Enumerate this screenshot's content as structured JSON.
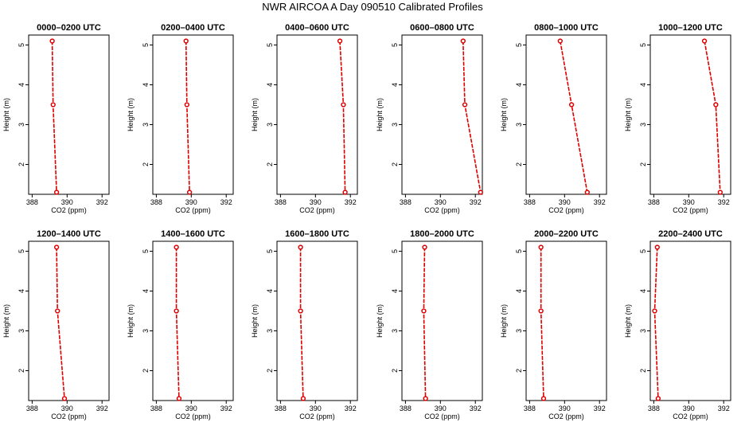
{
  "title": "NWR AIRCOA A  Day 090510  Calibrated Profiles",
  "colors": {
    "series": "#e00000",
    "axis": "#000000"
  },
  "chart_data": [
    {
      "type": "line",
      "title": "0000–0200 UTC",
      "xlabel": "CO2 (ppm)",
      "ylabel": "Height (m)",
      "xlim": [
        387.8,
        392.4
      ],
      "ylim": [
        1.25,
        5.25
      ],
      "xticks": [
        388,
        390,
        392
      ],
      "yticks": [
        2,
        3,
        4,
        5
      ],
      "x": [
        389.15,
        389.2,
        389.4
      ],
      "y": [
        5.1,
        3.5,
        1.3
      ]
    },
    {
      "type": "line",
      "title": "0200–0400 UTC",
      "xlabel": "CO2 (ppm)",
      "ylabel": "Height (m)",
      "xlim": [
        387.8,
        392.4
      ],
      "ylim": [
        1.25,
        5.25
      ],
      "xticks": [
        388,
        390,
        392
      ],
      "yticks": [
        2,
        3,
        4,
        5
      ],
      "x": [
        389.7,
        389.75,
        389.9
      ],
      "y": [
        5.1,
        3.5,
        1.3
      ]
    },
    {
      "type": "line",
      "title": "0400–0600 UTC",
      "xlabel": "CO2 (ppm)",
      "ylabel": "Height (m)",
      "xlim": [
        387.8,
        392.4
      ],
      "ylim": [
        1.25,
        5.25
      ],
      "xticks": [
        388,
        390,
        392
      ],
      "yticks": [
        2,
        3,
        4,
        5
      ],
      "x": [
        391.4,
        391.6,
        391.7
      ],
      "y": [
        5.1,
        3.5,
        1.3
      ]
    },
    {
      "type": "line",
      "title": "0600–0800 UTC",
      "xlabel": "CO2 (ppm)",
      "ylabel": "Height (m)",
      "xlim": [
        387.8,
        392.4
      ],
      "ylim": [
        1.25,
        5.25
      ],
      "xticks": [
        388,
        390,
        392
      ],
      "yticks": [
        2,
        3,
        4,
        5
      ],
      "x": [
        391.3,
        391.4,
        392.3
      ],
      "y": [
        5.1,
        3.5,
        1.3
      ]
    },
    {
      "type": "line",
      "title": "0800–1000 UTC",
      "xlabel": "CO2 (ppm)",
      "ylabel": "Height (m)",
      "xlim": [
        387.8,
        392.4
      ],
      "ylim": [
        1.25,
        5.25
      ],
      "xticks": [
        388,
        390,
        392
      ],
      "yticks": [
        2,
        3,
        4,
        5
      ],
      "x": [
        389.75,
        390.4,
        391.3
      ],
      "y": [
        5.1,
        3.5,
        1.3
      ]
    },
    {
      "type": "line",
      "title": "1000–1200 UTC",
      "xlabel": "CO2 (ppm)",
      "ylabel": "Height (m)",
      "xlim": [
        387.8,
        392.4
      ],
      "ylim": [
        1.25,
        5.25
      ],
      "xticks": [
        388,
        390,
        392
      ],
      "yticks": [
        2,
        3,
        4,
        5
      ],
      "x": [
        390.9,
        391.55,
        391.8
      ],
      "y": [
        5.1,
        3.5,
        1.3
      ]
    },
    {
      "type": "line",
      "title": "1200–1400 UTC",
      "xlabel": "CO2 (ppm)",
      "ylabel": "Height (m)",
      "xlim": [
        387.8,
        392.4
      ],
      "ylim": [
        1.25,
        5.25
      ],
      "xticks": [
        388,
        390,
        392
      ],
      "yticks": [
        2,
        3,
        4,
        5
      ],
      "x": [
        389.4,
        389.45,
        389.85
      ],
      "y": [
        5.1,
        3.5,
        1.3
      ]
    },
    {
      "type": "line",
      "title": "1400–1600 UTC",
      "xlabel": "CO2 (ppm)",
      "ylabel": "Height (m)",
      "xlim": [
        387.8,
        392.4
      ],
      "ylim": [
        1.25,
        5.25
      ],
      "xticks": [
        388,
        390,
        392
      ],
      "yticks": [
        2,
        3,
        4,
        5
      ],
      "x": [
        389.15,
        389.15,
        389.3
      ],
      "y": [
        5.1,
        3.5,
        1.3
      ]
    },
    {
      "type": "line",
      "title": "1600–1800 UTC",
      "xlabel": "CO2 (ppm)",
      "ylabel": "Height (m)",
      "xlim": [
        387.8,
        392.4
      ],
      "ylim": [
        1.25,
        5.25
      ],
      "xticks": [
        388,
        390,
        392
      ],
      "yticks": [
        2,
        3,
        4,
        5
      ],
      "x": [
        389.15,
        389.15,
        389.3
      ],
      "y": [
        5.1,
        3.5,
        1.3
      ]
    },
    {
      "type": "line",
      "title": "1800–2000 UTC",
      "xlabel": "CO2 (ppm)",
      "ylabel": "Height (m)",
      "xlim": [
        387.8,
        392.4
      ],
      "ylim": [
        1.25,
        5.25
      ],
      "xticks": [
        388,
        390,
        392
      ],
      "yticks": [
        2,
        3,
        4,
        5
      ],
      "x": [
        389.1,
        389.05,
        389.15
      ],
      "y": [
        5.1,
        3.5,
        1.3
      ]
    },
    {
      "type": "line",
      "title": "2000–2200 UTC",
      "xlabel": "CO2 (ppm)",
      "ylabel": "Height (m)",
      "xlim": [
        387.8,
        392.4
      ],
      "ylim": [
        1.25,
        5.25
      ],
      "xticks": [
        388,
        390,
        392
      ],
      "yticks": [
        2,
        3,
        4,
        5
      ],
      "x": [
        388.65,
        388.65,
        388.8
      ],
      "y": [
        5.1,
        3.5,
        1.3
      ]
    },
    {
      "type": "line",
      "title": "2200–2400 UTC",
      "xlabel": "CO2 (ppm)",
      "ylabel": "Height (m)",
      "xlim": [
        387.8,
        392.4
      ],
      "ylim": [
        1.25,
        5.25
      ],
      "xticks": [
        388,
        390,
        392
      ],
      "yticks": [
        2,
        3,
        4,
        5
      ],
      "x": [
        388.2,
        388.05,
        388.25
      ],
      "y": [
        5.1,
        3.5,
        1.3
      ]
    }
  ]
}
